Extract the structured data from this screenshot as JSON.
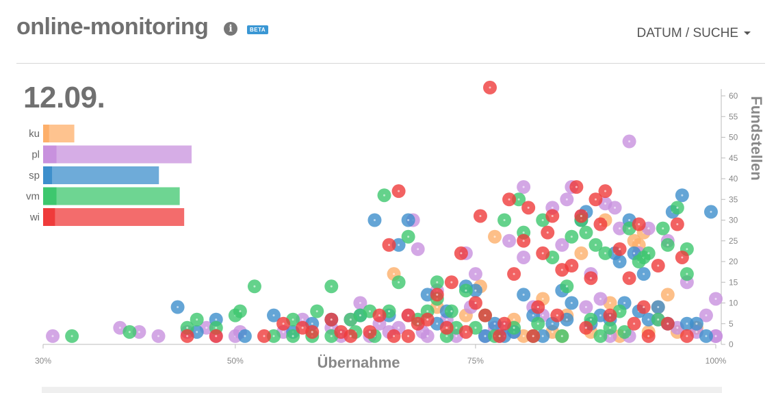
{
  "header": {
    "title": "online-monitoring",
    "info_icon": "info-icon",
    "beta": "BETA",
    "menu_label": "DATUM / SUCHE"
  },
  "date": "12.09.",
  "colors": {
    "ku": "#fdaf6a",
    "pl": "#c891de",
    "sp": "#3d8fcc",
    "vm": "#3dc76e",
    "wi": "#ef3b3b"
  },
  "categories": [
    {
      "key": "ku",
      "label": "ku",
      "color": "#fdaf6a",
      "share": 0.04,
      "total": 0.21
    },
    {
      "key": "pl",
      "label": "pl",
      "color": "#c891de",
      "share": 0.09,
      "total": 1.0
    },
    {
      "key": "sp",
      "label": "sp",
      "color": "#3d8fcc",
      "share": 0.06,
      "total": 0.78
    },
    {
      "key": "vm",
      "label": "vm",
      "color": "#3dc76e",
      "share": 0.09,
      "total": 0.92
    },
    {
      "key": "wi",
      "label": "wi",
      "color": "#ef3b3b",
      "share": 0.08,
      "total": 0.95
    }
  ],
  "chart_data": {
    "type": "scatter",
    "xlabel": "Übernahme",
    "ylabel": "Fundstellen",
    "x_ticks": [
      "30%",
      "50%",
      "75%",
      "100%"
    ],
    "y_ticks": [
      "0",
      "5",
      "10",
      "15",
      "20",
      "25",
      "30",
      "35",
      "40",
      "45",
      "50",
      "55",
      "60"
    ],
    "xlim": [
      30,
      100
    ],
    "ylim": [
      0,
      62
    ],
    "series": [
      {
        "key": "ku",
        "color": "#fdaf6a",
        "points": [
          [
            66.5,
            17
          ],
          [
            71,
            9
          ],
          [
            74,
            7
          ],
          [
            75.5,
            14
          ],
          [
            77,
            26
          ],
          [
            79,
            6
          ],
          [
            80,
            2
          ],
          [
            82,
            11
          ],
          [
            83,
            3
          ],
          [
            84,
            2
          ],
          [
            84.5,
            7
          ],
          [
            86,
            22
          ],
          [
            87,
            3
          ],
          [
            88.5,
            30
          ],
          [
            89,
            10
          ],
          [
            90,
            2
          ],
          [
            91.5,
            25
          ],
          [
            92,
            24
          ],
          [
            92.5,
            27
          ],
          [
            93,
            3
          ],
          [
            94,
            9
          ],
          [
            95,
            12
          ],
          [
            96,
            3
          ],
          [
            98,
            4
          ]
        ]
      },
      {
        "key": "pl",
        "color": "#c891de",
        "points": [
          [
            31,
            2
          ],
          [
            38,
            4
          ],
          [
            40,
            3
          ],
          [
            42,
            2
          ],
          [
            45,
            3
          ],
          [
            47,
            4
          ],
          [
            48,
            2
          ],
          [
            50,
            2
          ],
          [
            50.5,
            3
          ],
          [
            55,
            3
          ],
          [
            57,
            6
          ],
          [
            60,
            4
          ],
          [
            61,
            2
          ],
          [
            62,
            6
          ],
          [
            63,
            10
          ],
          [
            64,
            2
          ],
          [
            65,
            5
          ],
          [
            66,
            3
          ],
          [
            67,
            4
          ],
          [
            68,
            7
          ],
          [
            68.5,
            30
          ],
          [
            69,
            23
          ],
          [
            69.5,
            3
          ],
          [
            70,
            2
          ],
          [
            71,
            13
          ],
          [
            72,
            6
          ],
          [
            73,
            2
          ],
          [
            74,
            22
          ],
          [
            74.5,
            9
          ],
          [
            75,
            17
          ],
          [
            76,
            2
          ],
          [
            77,
            4
          ],
          [
            77.5,
            2
          ],
          [
            78,
            4
          ],
          [
            78.5,
            25
          ],
          [
            79,
            3
          ],
          [
            80,
            21
          ],
          [
            80,
            38
          ],
          [
            81,
            9
          ],
          [
            82,
            7
          ],
          [
            83,
            33
          ],
          [
            84,
            24
          ],
          [
            84.5,
            35
          ],
          [
            85,
            38
          ],
          [
            86,
            31
          ],
          [
            86.5,
            9
          ],
          [
            87,
            17
          ],
          [
            88,
            11
          ],
          [
            88.5,
            34
          ],
          [
            89,
            2
          ],
          [
            89.5,
            33
          ],
          [
            90,
            28
          ],
          [
            91,
            2
          ],
          [
            91,
            49
          ],
          [
            92,
            22
          ],
          [
            93,
            28
          ],
          [
            94,
            6
          ],
          [
            95,
            25
          ],
          [
            96,
            4
          ],
          [
            97,
            15
          ],
          [
            98,
            3
          ],
          [
            99,
            7
          ],
          [
            100,
            2
          ],
          [
            101,
            11
          ],
          [
            103,
            2
          ]
        ]
      },
      {
        "key": "sp",
        "color": "#3d8fcc",
        "points": [
          [
            44,
            9
          ],
          [
            46,
            3
          ],
          [
            48,
            6
          ],
          [
            51,
            2
          ],
          [
            54,
            7
          ],
          [
            56,
            3
          ],
          [
            58,
            5
          ],
          [
            60,
            6
          ],
          [
            63,
            7
          ],
          [
            64.5,
            30
          ],
          [
            66,
            7
          ],
          [
            67,
            24
          ],
          [
            68,
            30
          ],
          [
            70,
            12
          ],
          [
            71,
            5
          ],
          [
            72,
            8
          ],
          [
            74,
            14
          ],
          [
            75,
            13
          ],
          [
            76,
            2
          ],
          [
            77,
            5
          ],
          [
            78,
            2
          ],
          [
            79,
            3
          ],
          [
            80,
            12
          ],
          [
            81,
            7
          ],
          [
            82,
            2
          ],
          [
            83,
            5
          ],
          [
            84,
            13
          ],
          [
            84.5,
            6
          ],
          [
            85,
            10
          ],
          [
            86,
            30
          ],
          [
            86.5,
            32
          ],
          [
            87,
            5
          ],
          [
            88,
            7
          ],
          [
            89,
            6
          ],
          [
            89.5,
            22
          ],
          [
            90,
            20
          ],
          [
            90.5,
            10
          ],
          [
            91,
            30
          ],
          [
            91.5,
            22
          ],
          [
            92,
            8
          ],
          [
            92.5,
            17
          ],
          [
            93,
            6
          ],
          [
            94,
            9
          ],
          [
            95,
            5
          ],
          [
            95.5,
            32
          ],
          [
            96.5,
            36
          ],
          [
            97,
            5
          ],
          [
            98,
            5
          ],
          [
            99,
            2
          ],
          [
            99.5,
            32
          ]
        ]
      },
      {
        "key": "vm",
        "color": "#3dc76e",
        "points": [
          [
            33,
            2
          ],
          [
            39,
            3
          ],
          [
            45,
            4
          ],
          [
            46,
            6
          ],
          [
            48,
            4
          ],
          [
            50,
            7
          ],
          [
            50.5,
            8
          ],
          [
            52,
            14
          ],
          [
            54,
            2
          ],
          [
            56,
            2
          ],
          [
            56,
            6
          ],
          [
            58,
            2
          ],
          [
            58.5,
            8
          ],
          [
            60,
            2
          ],
          [
            60,
            14
          ],
          [
            62,
            6
          ],
          [
            62.5,
            3
          ],
          [
            63,
            7
          ],
          [
            64,
            8
          ],
          [
            64.5,
            2
          ],
          [
            65.5,
            36
          ],
          [
            66,
            8
          ],
          [
            67,
            15
          ],
          [
            68,
            26
          ],
          [
            69,
            6
          ],
          [
            70,
            8
          ],
          [
            71,
            15
          ],
          [
            71,
            11
          ],
          [
            72,
            2
          ],
          [
            72.5,
            8
          ],
          [
            73,
            4
          ],
          [
            74,
            13
          ],
          [
            75,
            4
          ],
          [
            76,
            7
          ],
          [
            77,
            2
          ],
          [
            78,
            30
          ],
          [
            79,
            4
          ],
          [
            79.5,
            35
          ],
          [
            80,
            27
          ],
          [
            81,
            2
          ],
          [
            81.5,
            5
          ],
          [
            82,
            30
          ],
          [
            83,
            21
          ],
          [
            84,
            2
          ],
          [
            84.5,
            14
          ],
          [
            85,
            26
          ],
          [
            86,
            30
          ],
          [
            86.5,
            27
          ],
          [
            87,
            6
          ],
          [
            87.5,
            24
          ],
          [
            88,
            2
          ],
          [
            88.5,
            22
          ],
          [
            89,
            4
          ],
          [
            90,
            8
          ],
          [
            90.5,
            3
          ],
          [
            91,
            28
          ],
          [
            92,
            20
          ],
          [
            92.5,
            21
          ],
          [
            93,
            22
          ],
          [
            94,
            6
          ],
          [
            94.5,
            28
          ],
          [
            95,
            24
          ],
          [
            96,
            33
          ],
          [
            97,
            17
          ],
          [
            97,
            23
          ]
        ]
      },
      {
        "key": "wi",
        "color": "#ef3b3b",
        "points": [
          [
            45,
            2
          ],
          [
            48,
            2
          ],
          [
            53,
            2
          ],
          [
            55,
            5
          ],
          [
            57,
            4
          ],
          [
            58,
            3
          ],
          [
            60,
            6
          ],
          [
            61,
            3
          ],
          [
            62,
            2
          ],
          [
            64,
            3
          ],
          [
            65,
            7
          ],
          [
            66,
            24
          ],
          [
            66.5,
            2
          ],
          [
            67,
            37
          ],
          [
            68,
            2
          ],
          [
            68,
            7
          ],
          [
            69,
            5
          ],
          [
            70,
            6
          ],
          [
            71,
            12
          ],
          [
            72,
            4
          ],
          [
            72.5,
            15
          ],
          [
            73.5,
            22
          ],
          [
            74,
            3
          ],
          [
            75,
            10
          ],
          [
            75.5,
            31
          ],
          [
            76,
            7
          ],
          [
            76.5,
            62
          ],
          [
            77.5,
            2
          ],
          [
            78,
            5
          ],
          [
            78.5,
            35
          ],
          [
            79,
            17
          ],
          [
            80,
            25
          ],
          [
            80.5,
            33
          ],
          [
            81,
            2
          ],
          [
            81.5,
            9
          ],
          [
            82,
            22
          ],
          [
            82.5,
            27
          ],
          [
            83,
            31
          ],
          [
            83.5,
            7
          ],
          [
            84,
            18
          ],
          [
            85,
            19
          ],
          [
            85.5,
            38
          ],
          [
            86,
            31
          ],
          [
            86.5,
            4
          ],
          [
            87,
            16
          ],
          [
            87.5,
            35
          ],
          [
            88,
            29
          ],
          [
            88.5,
            37
          ],
          [
            89,
            7
          ],
          [
            90,
            23
          ],
          [
            91,
            16
          ],
          [
            91.5,
            5
          ],
          [
            92,
            29
          ],
          [
            92.5,
            9
          ],
          [
            93,
            2
          ],
          [
            94,
            19
          ],
          [
            95,
            5
          ],
          [
            96,
            29
          ],
          [
            96.5,
            21
          ],
          [
            97,
            2
          ]
        ]
      }
    ]
  }
}
